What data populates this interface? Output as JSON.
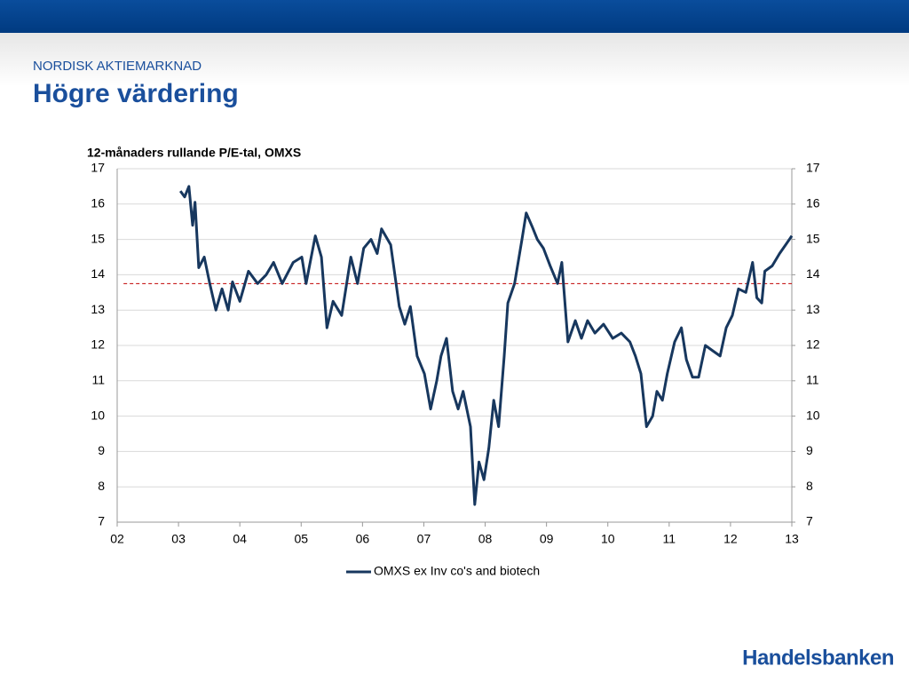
{
  "header": {
    "kicker": "NORDISK AKTIEMARKNAD",
    "title": "Högre värdering"
  },
  "footer": {
    "logo": "Handelsbanken"
  },
  "chart_data": {
    "type": "line",
    "title": "12-månaders rullande P/E-tal, OMXS",
    "x": [
      2003.03,
      2003.1,
      2003.17,
      2003.23,
      2003.27,
      2003.33,
      2003.42,
      2003.51,
      2003.61,
      2003.71,
      2003.81,
      2003.88,
      2004.0,
      2004.14,
      2004.29,
      2004.43,
      2004.55,
      2004.69,
      2004.87,
      2005.01,
      2005.08,
      2005.23,
      2005.33,
      2005.42,
      2005.52,
      2005.66,
      2005.81,
      2005.92,
      2006.02,
      2006.14,
      2006.24,
      2006.31,
      2006.46,
      2006.6,
      2006.69,
      2006.78,
      2006.89,
      2007.01,
      2007.11,
      2007.21,
      2007.28,
      2007.37,
      2007.47,
      2007.56,
      2007.64,
      2007.76,
      2007.83,
      2007.9,
      2007.98,
      2008.06,
      2008.14,
      2008.22,
      2008.31,
      2008.37,
      2008.48,
      2008.6,
      2008.67,
      2008.77,
      2008.85,
      2008.95,
      2009.06,
      2009.18,
      2009.25,
      2009.35,
      2009.47,
      2009.57,
      2009.67,
      2009.79,
      2009.93,
      2010.08,
      2010.22,
      2010.36,
      2010.45,
      2010.54,
      2010.63,
      2010.73,
      2010.8,
      2010.89,
      2010.97,
      2011.09,
      2011.2,
      2011.28,
      2011.38,
      2011.48,
      2011.59,
      2011.71,
      2011.83,
      2011.93,
      2012.03,
      2012.13,
      2012.25,
      2012.36,
      2012.43,
      2012.51,
      2012.56,
      2012.68,
      2012.8,
      2012.9,
      2013.0
    ],
    "series": [
      {
        "name": "OMXS ex Inv co's and biotech",
        "color": "#17375e",
        "values": [
          16.37,
          16.2,
          16.5,
          15.4,
          16.05,
          14.2,
          14.5,
          13.75,
          13.0,
          13.6,
          13.0,
          13.8,
          13.25,
          14.1,
          13.75,
          14.0,
          14.35,
          13.75,
          14.35,
          14.5,
          13.75,
          15.1,
          14.5,
          12.5,
          13.25,
          12.85,
          14.5,
          13.75,
          14.75,
          15.0,
          14.6,
          15.3,
          14.85,
          13.1,
          12.6,
          13.1,
          11.7,
          11.2,
          10.2,
          11.0,
          11.7,
          12.2,
          10.7,
          10.2,
          10.7,
          9.7,
          7.5,
          8.7,
          8.2,
          9.1,
          10.45,
          9.7,
          11.7,
          13.2,
          13.75,
          15.0,
          15.75,
          15.35,
          15.0,
          14.75,
          14.25,
          13.75,
          14.35,
          12.1,
          12.7,
          12.2,
          12.7,
          12.35,
          12.6,
          12.2,
          12.35,
          12.1,
          11.7,
          11.2,
          9.7,
          10.0,
          10.7,
          10.45,
          11.2,
          12.1,
          12.5,
          11.6,
          11.1,
          11.1,
          12.0,
          11.85,
          11.7,
          12.5,
          12.85,
          13.6,
          13.5,
          14.35,
          13.35,
          13.2,
          14.1,
          14.25,
          14.6,
          14.85,
          15.1
        ]
      }
    ],
    "reference_line": {
      "value": 13.75,
      "color": "#c00000"
    },
    "xlim": [
      2002,
      2013
    ],
    "xticks": [
      {
        "value": 2002,
        "label": "02"
      },
      {
        "value": 2003,
        "label": "03"
      },
      {
        "value": 2004,
        "label": "04"
      },
      {
        "value": 2005,
        "label": "05"
      },
      {
        "value": 2006,
        "label": "06"
      },
      {
        "value": 2007,
        "label": "07"
      },
      {
        "value": 2008,
        "label": "08"
      },
      {
        "value": 2009,
        "label": "09"
      },
      {
        "value": 2010,
        "label": "10"
      },
      {
        "value": 2011,
        "label": "11"
      },
      {
        "value": 2012,
        "label": "12"
      },
      {
        "value": 2013,
        "label": "13"
      }
    ],
    "ylim": [
      7,
      17
    ],
    "yticks": [
      7,
      8,
      9,
      10,
      11,
      12,
      13,
      14,
      15,
      16,
      17
    ],
    "y2lim": [
      7,
      17
    ],
    "y2ticks": [
      7,
      8,
      9,
      10,
      11,
      12,
      13,
      14,
      15,
      16,
      17
    ],
    "grid": true,
    "legend": "bottom"
  }
}
